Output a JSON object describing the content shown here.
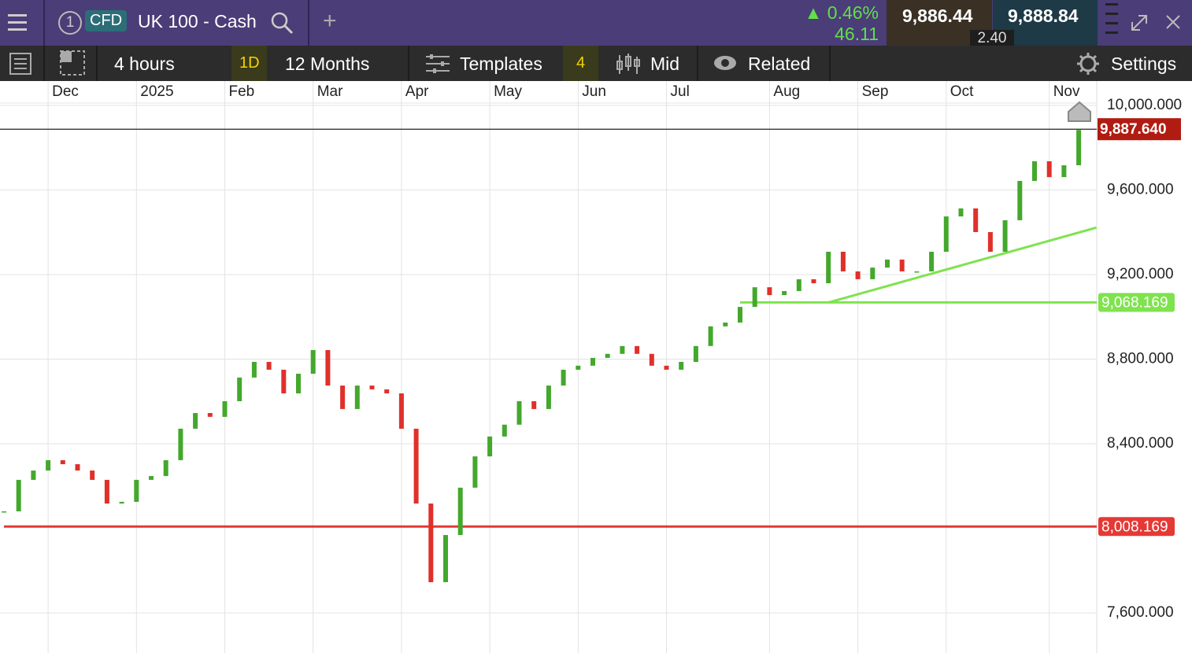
{
  "header": {
    "badge": "1",
    "market_type": "CFD",
    "instrument": "UK 100 - Cash",
    "change_pct": "0.46%",
    "change": "46.11",
    "sell": "9,886.44",
    "buy": "9,888.84",
    "spread": "2.40"
  },
  "toolbar": {
    "interval": "4 hours",
    "interval_short": "1D",
    "range": "12 Months",
    "templates": "Templates",
    "templates_count": "4",
    "price_type": "Mid",
    "related": "Related",
    "settings": "Settings"
  },
  "chart_data": {
    "type": "candlestick",
    "categories": [
      null,
      null,
      null,
      null,
      null,
      null,
      null,
      null,
      null,
      null,
      null,
      null,
      null,
      null,
      null,
      null,
      null,
      null,
      null,
      null,
      null,
      null,
      null,
      null,
      null,
      null,
      null,
      null,
      null,
      null,
      null,
      null,
      null,
      null,
      null,
      null,
      null,
      null,
      null,
      null,
      null,
      null,
      null,
      null,
      null,
      null,
      null,
      null,
      null,
      null,
      null,
      null,
      null,
      null,
      null,
      null,
      null,
      null,
      null,
      null,
      null,
      null,
      null,
      null,
      null,
      null,
      null,
      null,
      null,
      null,
      null,
      null,
      null,
      null
    ],
    "values": [
      8080,
      8229,
      8273,
      8322,
      8303,
      8273,
      8229,
      8117,
      8125,
      8229,
      8247,
      8322,
      8471,
      8545,
      8527,
      8601,
      8713,
      8787,
      8750,
      8638,
      8731,
      8843,
      8675,
      8564,
      8675,
      8657,
      8638,
      8471,
      8117,
      7745,
      7968,
      8192,
      8340,
      8434,
      8490,
      8601,
      8564,
      8675,
      8750,
      8769,
      8806,
      8825,
      8862,
      8825,
      8769,
      8750,
      8787,
      8862,
      8955,
      8973,
      9047,
      9140,
      9103,
      9122,
      9178,
      9159,
      9308,
      9215,
      9178,
      9233,
      9271,
      9215,
      9215,
      9308,
      9475,
      9513,
      9401,
      9308,
      9457,
      9643,
      9736,
      9661,
      9717,
      9884
    ],
    "colors": {
      "up": "#43a82c",
      "down": "#e0302a"
    },
    "ylim": [
      7410,
      10015
    ],
    "yticks": [
      {
        "value": 7600,
        "label": "7,600.000"
      },
      {
        "value": 8400,
        "label": "8,400.000"
      },
      {
        "value": 8800,
        "label": "8,800.000"
      },
      {
        "value": 9200,
        "label": "9,200.000"
      },
      {
        "value": 9600,
        "label": "9,600.000"
      },
      {
        "value": 10000,
        "label": "10,000.000"
      }
    ],
    "xticks": [
      {
        "value": 3,
        "label": "Dec"
      },
      {
        "value": 9,
        "label": "2025"
      },
      {
        "value": 15,
        "label": "Feb"
      },
      {
        "value": 21,
        "label": "Mar"
      },
      {
        "value": 27,
        "label": "Apr"
      },
      {
        "value": 33,
        "label": "May"
      },
      {
        "value": 39,
        "label": "Jun"
      },
      {
        "value": 45,
        "label": "Jul"
      },
      {
        "value": 52,
        "label": "Aug"
      },
      {
        "value": 58,
        "label": "Sep"
      },
      {
        "value": 64,
        "label": "Oct"
      },
      {
        "value": 71,
        "label": "Nov"
      }
    ],
    "grid": true,
    "price_line": {
      "value": 9887.64,
      "label": "9,887.640",
      "color": "#b01c12"
    },
    "levels": [
      {
        "value": 9068.169,
        "label": "9,068.169",
        "color": "#7fe34f",
        "x_start": 50
      },
      {
        "value": 8008.169,
        "label": "8,008.169",
        "color": "#e53935",
        "x_start": 0
      }
    ],
    "trendline": {
      "x": [
        56,
        74.2
      ],
      "values": [
        9068,
        9422
      ],
      "color": "#7fe34f"
    }
  }
}
